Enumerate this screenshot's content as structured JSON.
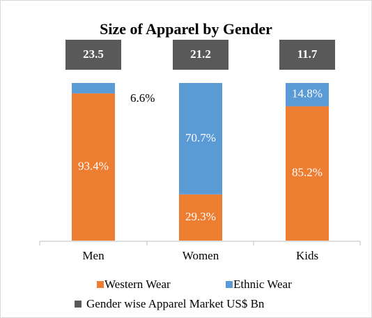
{
  "chart_data": {
    "type": "stacked_bar",
    "title": "Size of Apparel by Gender",
    "categories": [
      "Men",
      "Women",
      "Kids"
    ],
    "series": [
      {
        "name": "Western Wear",
        "color": "#ed7d31",
        "values": [
          93.4,
          29.3,
          85.2
        ],
        "value_labels": [
          "93.4%",
          "29.3%",
          "85.2%"
        ]
      },
      {
        "name": "Ethnic Wear",
        "color": "#5b9bd5",
        "values": [
          6.6,
          70.7,
          14.8
        ],
        "value_labels": [
          "6.6%",
          "70.7%",
          "14.8%"
        ]
      }
    ],
    "totals": {
      "name": "Gender wise Apparel Market US$ Bn",
      "color": "#595959",
      "values": [
        23.5,
        21.2,
        11.7
      ]
    },
    "ylim": [
      0,
      100
    ]
  }
}
